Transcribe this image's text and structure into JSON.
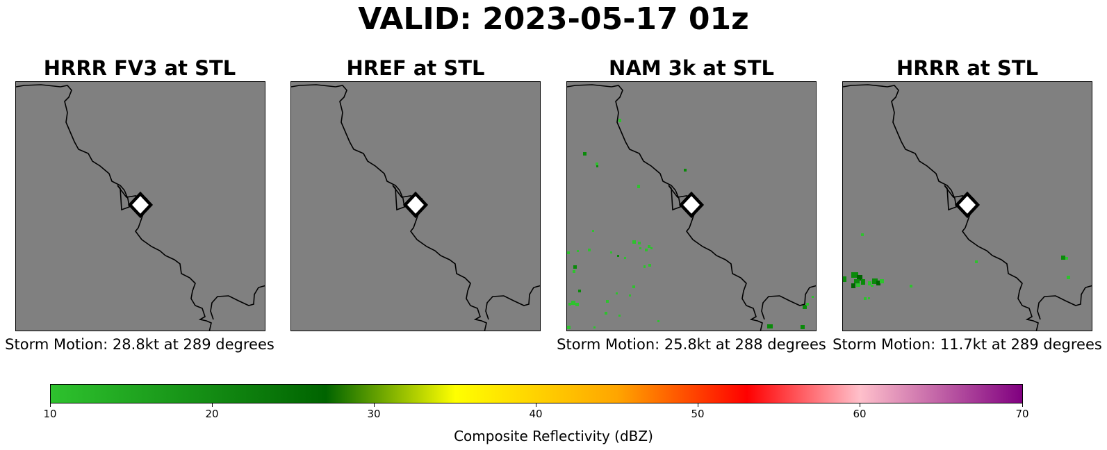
{
  "title": "VALID: 2023-05-17 01z",
  "panels": [
    {
      "title": "HRRR FV3 at STL",
      "caption": "Storm Motion: 28.8kt at 289 degrees",
      "echo_count": 0
    },
    {
      "title": "HREF at STL",
      "caption": "",
      "echo_count": 0
    },
    {
      "title": "NAM 3k at STL",
      "caption": "Storm Motion: 25.8kt at 288 degrees",
      "echo_count": 41
    },
    {
      "title": "HRRR at STL",
      "caption": "Storm Motion: 11.7kt at 289 degrees",
      "echo_count": 20
    }
  ],
  "colors": {
    "map_background": "#808080",
    "coastline": "#000000",
    "marker_fill": "#ffffff",
    "marker_edge": "#000000",
    "echo_light": "#2ec22e",
    "echo_dark": "#006400"
  },
  "colorbar": {
    "label": "Composite Reflectivity (dBZ)",
    "ticks": [
      "10",
      "20",
      "30",
      "40",
      "50",
      "60",
      "70"
    ],
    "range": [
      10,
      70
    ],
    "stops": [
      {
        "value": 10,
        "color": "#2ec22e"
      },
      {
        "value": 27,
        "color": "#006400"
      },
      {
        "value": 35,
        "color": "#ffff00"
      },
      {
        "value": 45,
        "color": "#ffa500"
      },
      {
        "value": 53,
        "color": "#ff0000"
      },
      {
        "value": 60,
        "color": "#ffc0cb"
      },
      {
        "value": 70,
        "color": "#800080"
      }
    ]
  }
}
